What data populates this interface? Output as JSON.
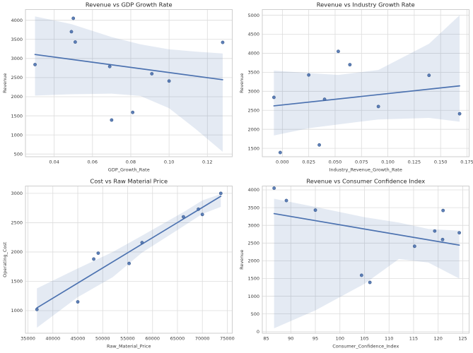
{
  "figure": {
    "background": "#ffffff"
  },
  "style": {
    "accent": "#4c72b0",
    "point_edge": "#3a5a8c",
    "band_color": "#4c72b0",
    "band_opacity": 0.15,
    "grid_color": "#dcdcdc",
    "spine_color": "#c9c9c9",
    "title_color": "#262626",
    "label_color": "#3b3b3b",
    "tick_color": "#3b3b3b"
  },
  "chart_data": [
    {
      "type": "scatter",
      "title": "Revenue vs GDP Growth Rate",
      "xlabel": "GDP_Growth_Rate",
      "ylabel": "Revenue",
      "x": [
        0.03,
        0.05,
        0.049,
        0.051,
        0.069,
        0.07,
        0.081,
        0.091,
        0.1,
        0.128
      ],
      "y": [
        2840,
        4050,
        3700,
        3430,
        2790,
        1390,
        1590,
        2600,
        2410,
        3420
      ],
      "xlim": [
        0.025,
        0.133
      ],
      "ylim": [
        430,
        4280
      ],
      "xticks": [
        0.04,
        0.06,
        0.08,
        0.1,
        0.12
      ],
      "xtick_labels": [
        "0.04",
        "0.06",
        "0.08",
        "0.10",
        "0.12"
      ],
      "yticks": [
        500,
        1000,
        1500,
        2000,
        2500,
        3000,
        3500,
        4000
      ],
      "ytick_labels": [
        "500",
        "1000",
        "1500",
        "2000",
        "2500",
        "3000",
        "3500",
        "4000"
      ],
      "grid": true,
      "legend": null,
      "regression": true,
      "ci_band": {
        "x": [
          0.03,
          0.049,
          0.07,
          0.085,
          0.1,
          0.114,
          0.128
        ],
        "lower": [
          2030,
          2065,
          2080,
          2020,
          1700,
          1150,
          560
        ],
        "upper": [
          4100,
          3900,
          3560,
          3370,
          3240,
          3180,
          3130
        ]
      }
    },
    {
      "type": "scatter",
      "title": "Revenue vs Industry Growth Rate",
      "xlabel": "Industry_Revenue_Growth_Rate",
      "ylabel": "Revenue",
      "x": [
        -0.008,
        -0.002,
        0.025,
        0.035,
        0.04,
        0.053,
        0.064,
        0.091,
        0.139,
        0.168
      ],
      "y": [
        2840,
        1390,
        3430,
        1590,
        2790,
        4050,
        3700,
        2600,
        3420,
        2410
      ],
      "xlim": [
        -0.019,
        0.177
      ],
      "ylim": [
        1280,
        5150
      ],
      "xticks": [
        0.0,
        0.025,
        0.05,
        0.075,
        0.1,
        0.125,
        0.15,
        0.175
      ],
      "xtick_labels": [
        "0.000",
        "0.025",
        "0.050",
        "0.075",
        "0.100",
        "0.125",
        "0.150",
        "0.175"
      ],
      "yticks": [
        1500,
        2000,
        2500,
        3000,
        3500,
        4000,
        4500,
        5000
      ],
      "ytick_labels": [
        "1500",
        "2000",
        "2500",
        "3000",
        "3500",
        "4000",
        "4500",
        "5000"
      ],
      "grid": true,
      "legend": null,
      "regression": true,
      "ci_band": {
        "x": [
          -0.008,
          0.025,
          0.053,
          0.091,
          0.139,
          0.168
        ],
        "lower": [
          1840,
          2030,
          2130,
          2260,
          2300,
          2200
        ],
        "upper": [
          3544,
          3480,
          3430,
          3560,
          4250,
          5000
        ]
      }
    },
    {
      "type": "scatter",
      "title": "Cost vs Raw Material Price",
      "xlabel": "Raw_Material_Price",
      "ylabel": "Operating_Cost",
      "x": [
        36800,
        45000,
        48200,
        49100,
        55300,
        57900,
        66200,
        69200,
        70000,
        73700
      ],
      "y": [
        1020,
        1150,
        1880,
        1980,
        1805,
        2160,
        2600,
        2730,
        2640,
        3000
      ],
      "xlim": [
        34500,
        76000
      ],
      "ylim": [
        615,
        3125
      ],
      "xticks": [
        35000,
        40000,
        45000,
        50000,
        55000,
        60000,
        65000,
        70000,
        75000
      ],
      "xtick_labels": [
        "35000",
        "40000",
        "45000",
        "50000",
        "55000",
        "60000",
        "65000",
        "70000",
        "75000"
      ],
      "yticks": [
        1000,
        1500,
        2000,
        2500,
        3000
      ],
      "ytick_labels": [
        "1000",
        "1500",
        "2000",
        "2500",
        "3000"
      ],
      "grid": true,
      "legend": null,
      "regression": true,
      "ci_band": {
        "x": [
          36800,
          45000,
          52000,
          57900,
          66200,
          70000,
          73700
        ],
        "lower": [
          710,
          1230,
          1570,
          1990,
          2440,
          2650,
          2770
        ],
        "upper": [
          1380,
          1720,
          2000,
          2280,
          2680,
          2880,
          2990
        ]
      }
    },
    {
      "type": "scatter",
      "title": "Revenue vs Consumer Confidence Index",
      "xlabel": "Consumer_Confidence_Index",
      "ylabel": "Revenue",
      "x": [
        86.6,
        89.1,
        95.0,
        104.4,
        106.1,
        115.2,
        119.3,
        120.9,
        121.0,
        124.3
      ],
      "y": [
        4050,
        3700,
        3430,
        1590,
        1390,
        2410,
        2840,
        2600,
        3420,
        2790
      ],
      "xlim": [
        84.2,
        126.3
      ],
      "ylim": [
        -45,
        4110
      ],
      "xticks": [
        85,
        90,
        95,
        100,
        105,
        110,
        115,
        120,
        125
      ],
      "xtick_labels": [
        "85",
        "90",
        "95",
        "100",
        "105",
        "110",
        "115",
        "120",
        "125"
      ],
      "yticks": [
        0,
        500,
        1000,
        1500,
        2000,
        2500,
        3000,
        3500,
        4000
      ],
      "ytick_labels": [
        "0",
        "500",
        "1000",
        "1500",
        "2000",
        "2500",
        "3000",
        "3500",
        "4000"
      ],
      "grid": true,
      "legend": null,
      "regression": true,
      "ci_band": {
        "x": [
          86.6,
          95,
          105,
          112,
          118,
          124.3
        ],
        "lower": [
          95,
          600,
          1350,
          2050,
          1950,
          1500
        ],
        "upper": [
          3750,
          3520,
          3230,
          3080,
          2900,
          2850
        ]
      }
    }
  ]
}
